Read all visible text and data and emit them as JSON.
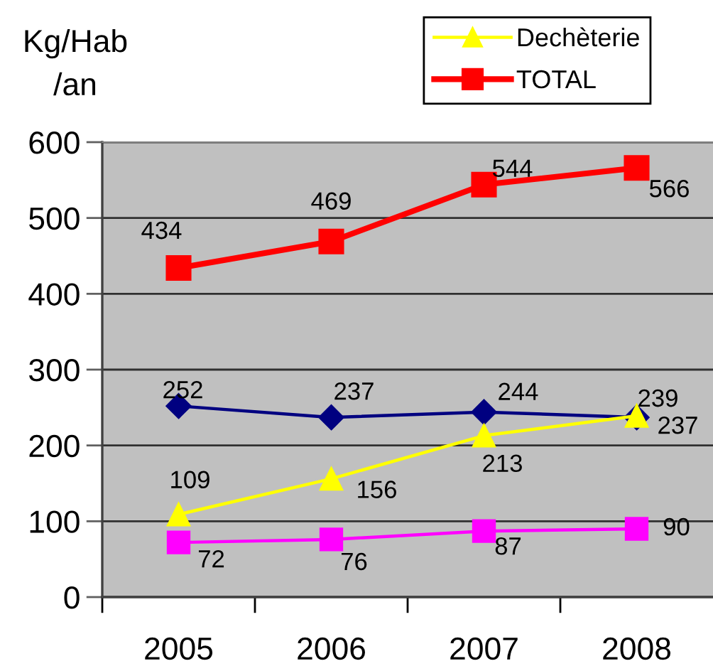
{
  "chart_data": {
    "type": "line",
    "ylabel": "Kg/Hab\n/an",
    "categories": [
      "2005",
      "2006",
      "2007",
      "2008"
    ],
    "series": [
      {
        "color": "#000080",
        "values": [
          252,
          237,
          244,
          237
        ],
        "marker": "diamond"
      },
      {
        "name": "Dechèterie",
        "color": "#ffff00",
        "values": [
          109,
          156,
          213,
          239
        ],
        "marker": "triangle"
      },
      {
        "color": "#ff00ff",
        "values": [
          72,
          76,
          87,
          90
        ],
        "marker": "square"
      },
      {
        "name": "TOTAL",
        "color": "#ff0000",
        "values": [
          434,
          469,
          544,
          566
        ],
        "marker": "square"
      }
    ],
    "ylim": [
      0,
      600
    ],
    "yticks": [
      0,
      100,
      200,
      300,
      400,
      500,
      600
    ],
    "grid": "y",
    "legend": "top right",
    "data_labels": true
  }
}
